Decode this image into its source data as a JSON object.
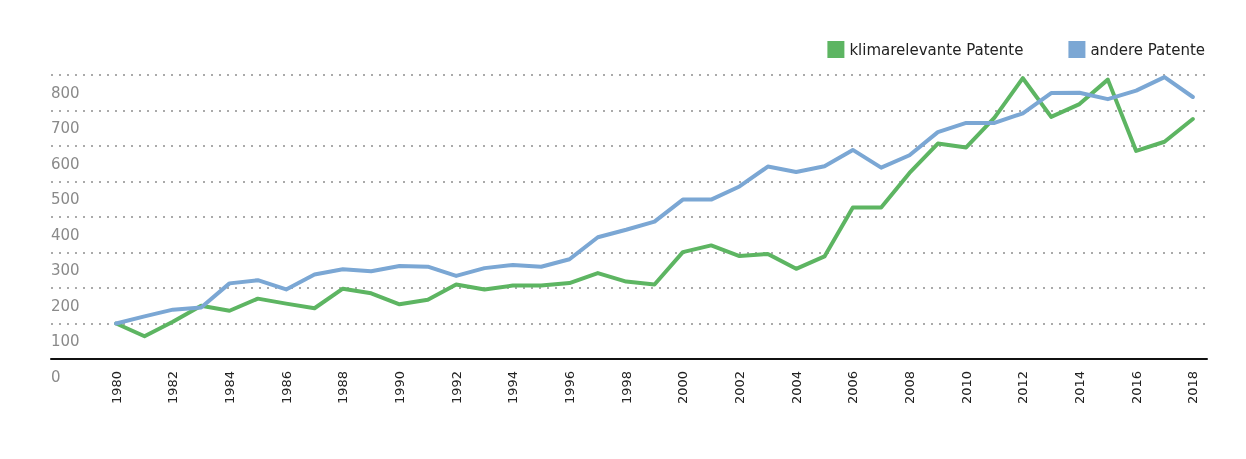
{
  "chart_data": {
    "type": "line",
    "x": [
      1980,
      1981,
      1982,
      1983,
      1984,
      1985,
      1986,
      1987,
      1988,
      1989,
      1990,
      1991,
      1992,
      1993,
      1994,
      1995,
      1996,
      1997,
      1998,
      1999,
      2000,
      2001,
      2002,
      2003,
      2004,
      2005,
      2006,
      2007,
      2008,
      2009,
      2010,
      2011,
      2012,
      2013,
      2014,
      2015,
      2016,
      2017,
      2018
    ],
    "series": [
      {
        "name": "klimarelevante Patente",
        "color": "#5db562",
        "values": [
          100,
          64,
          105,
          150,
          136,
          170,
          156,
          143,
          198,
          185,
          154,
          167,
          210,
          196,
          207,
          207,
          214,
          242,
          218,
          210,
          301,
          320,
          290,
          296,
          254,
          289,
          427,
          427,
          524,
          607,
          596,
          680,
          791,
          682,
          718,
          787,
          586,
          612,
          676
        ]
      },
      {
        "name": "andere Patente",
        "color": "#7ba7d4",
        "values": [
          100,
          120,
          139,
          145,
          213,
          222,
          196,
          238,
          253,
          247,
          262,
          260,
          234,
          256,
          265,
          260,
          281,
          343,
          364,
          387,
          449,
          449,
          486,
          542,
          527,
          543,
          589,
          539,
          574,
          639,
          665,
          665,
          692,
          749,
          750,
          732,
          756,
          794,
          738
        ]
      }
    ],
    "xlim": [
      1977.7,
      2018.5
    ],
    "xticks": [
      1980,
      1982,
      1984,
      1986,
      1988,
      1990,
      1992,
      1994,
      1996,
      1998,
      2000,
      2002,
      2004,
      2006,
      2008,
      2010,
      2012,
      2014,
      2016,
      2018
    ],
    "ylim": [
      0,
      800
    ],
    "yticks": [
      0,
      100,
      200,
      300,
      400,
      500,
      600,
      700,
      800
    ],
    "grid": "y",
    "legend": "top right",
    "marker": "none",
    "line_style": "solid"
  }
}
